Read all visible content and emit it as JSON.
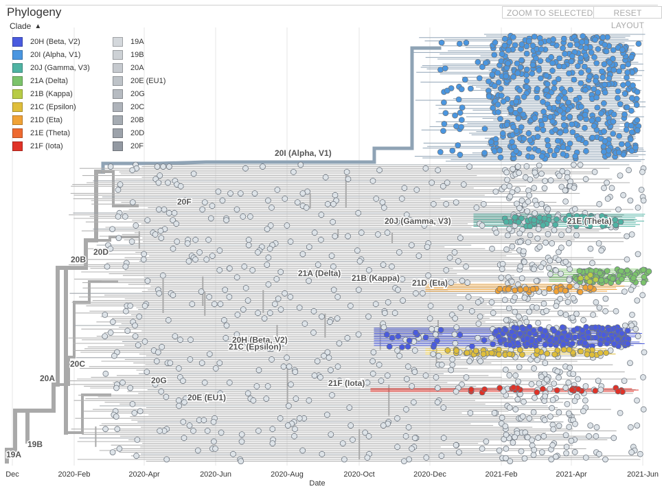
{
  "panel": {
    "title": "Phylogeny"
  },
  "toolbar": {
    "zoom_label": "ZOOM TO SELECTED",
    "reset_label": "RESET LAYOUT"
  },
  "legend": {
    "heading": "Clade",
    "toggle_icon": "chevron-up-icon",
    "items": [
      {
        "label": "20H (Beta, V2)",
        "color": "#4a5bdf"
      },
      {
        "label": "20I (Alpha, V1)",
        "color": "#4a96e0"
      },
      {
        "label": "20J (Gamma, V3)",
        "color": "#4fb3a3"
      },
      {
        "label": "21A (Delta)",
        "color": "#7cc36b"
      },
      {
        "label": "21B (Kappa)",
        "color": "#b8cc47"
      },
      {
        "label": "21C (Epsilon)",
        "color": "#dfbe3a"
      },
      {
        "label": "21D (Eta)",
        "color": "#f0a236"
      },
      {
        "label": "21E (Theta)",
        "color": "#ee6a30"
      },
      {
        "label": "21F (Iota)",
        "color": "#e03227"
      },
      {
        "label": "19A",
        "color": "#d4d8dc"
      },
      {
        "label": "19B",
        "color": "#cdd1d5"
      },
      {
        "label": "20A",
        "color": "#c6cacf"
      },
      {
        "label": "20E (EU1)",
        "color": "#bec3c8"
      },
      {
        "label": "20G",
        "color": "#b6bbc1"
      },
      {
        "label": "20C",
        "color": "#aeb3ba"
      },
      {
        "label": "20B",
        "color": "#a5abb2"
      },
      {
        "label": "20D",
        "color": "#9ca2aa"
      },
      {
        "label": "20F",
        "color": "#9399a2"
      }
    ]
  },
  "clade_labels": [
    {
      "text": "20I (Alpha, V1)"
    },
    {
      "text": "20F"
    },
    {
      "text": "20J (Gamma, V3)"
    },
    {
      "text": "21E (Theta)"
    },
    {
      "text": "20D"
    },
    {
      "text": "20B"
    },
    {
      "text": "21A (Delta)"
    },
    {
      "text": "21B (Kappa)"
    },
    {
      "text": "21D (Eta)"
    },
    {
      "text": "20H (Beta, V2)"
    },
    {
      "text": "21C (Epsilon)"
    },
    {
      "text": "20C"
    },
    {
      "text": "20A"
    },
    {
      "text": "20G"
    },
    {
      "text": "20E (EU1)"
    },
    {
      "text": "21F (Iota)"
    },
    {
      "text": "19B"
    },
    {
      "text": "19A"
    }
  ],
  "axis": {
    "title": "Date",
    "ticks": [
      "Dec",
      "2020-Feb",
      "2020-Apr",
      "2020-Jun",
      "2020-Aug",
      "2020-Oct",
      "2020-Dec",
      "2021-Feb",
      "2021-Apr",
      "2021-Jun"
    ]
  },
  "colors": {
    "branch_grey": "#a9a9a9",
    "alpha_branch": "#8fa3b5",
    "tip_default": "#dde3e8",
    "tip_stroke": "#6f7780",
    "grid": "#e6e6e6"
  }
}
